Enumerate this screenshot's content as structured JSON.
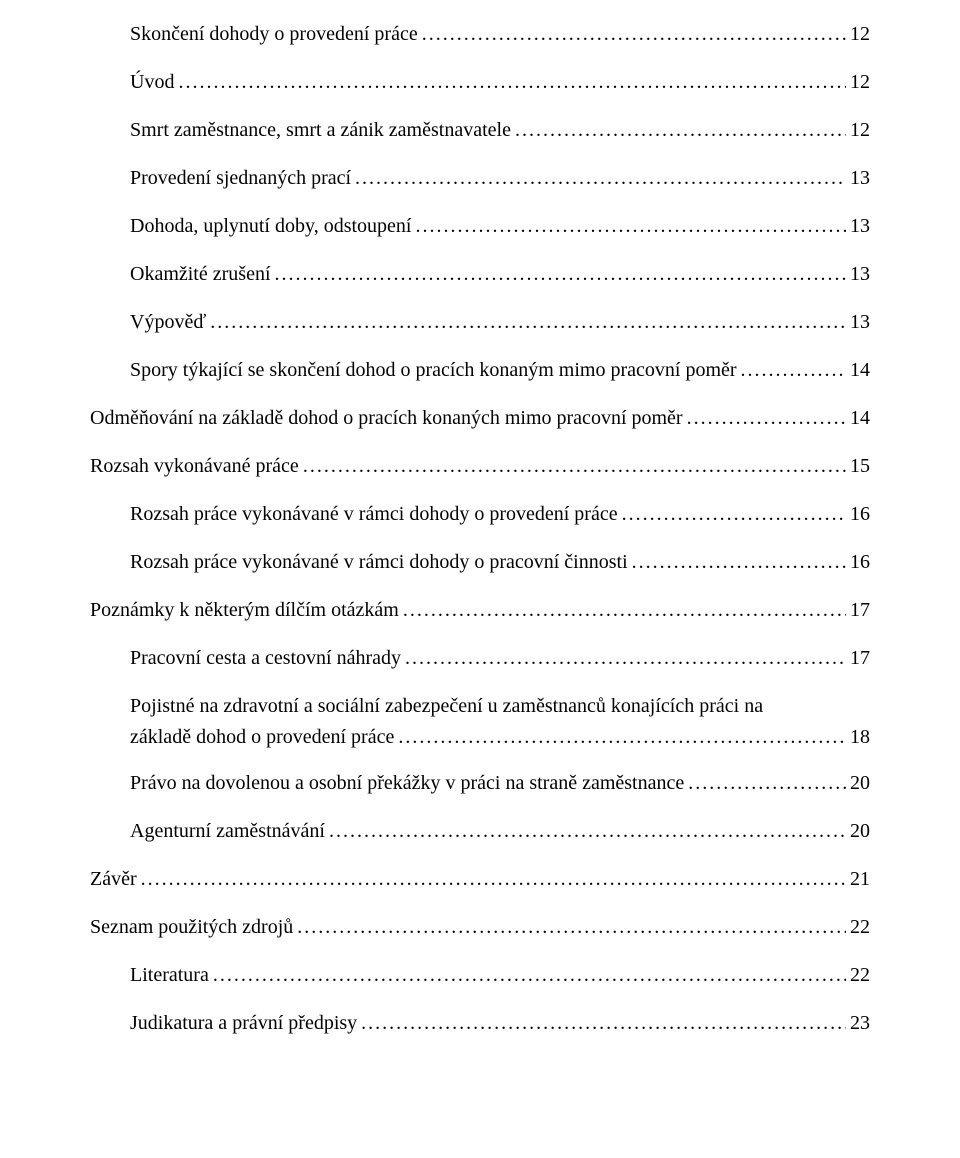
{
  "toc": [
    {
      "label": "Skončení dohody o provedení práce",
      "page": "12",
      "indent": 1
    },
    {
      "label": "Úvod",
      "page": "12",
      "indent": 1
    },
    {
      "label": "Smrt zaměstnance, smrt a zánik zaměstnavatele",
      "page": "12",
      "indent": 1
    },
    {
      "label": "Provedení sjednaných prací",
      "page": "13",
      "indent": 1
    },
    {
      "label": "Dohoda, uplynutí doby, odstoupení",
      "page": "13",
      "indent": 1
    },
    {
      "label": "Okamžité zrušení",
      "page": "13",
      "indent": 1
    },
    {
      "label": "Výpověď",
      "page": "13",
      "indent": 1
    },
    {
      "label": "Spory týkající se skončení dohod o pracích konaným mimo pracovní poměr",
      "page": "14",
      "indent": 1
    },
    {
      "label": "Odměňování na základě dohod o pracích konaných mimo pracovní poměr",
      "page": "14",
      "indent": 0
    },
    {
      "label": "Rozsah vykonávané práce",
      "page": "15",
      "indent": 0
    },
    {
      "label": "Rozsah práce vykonávané v rámci dohody o provedení práce",
      "page": "16",
      "indent": 1
    },
    {
      "label": "Rozsah práce vykonávané v rámci dohody o pracovní činnosti",
      "page": "16",
      "indent": 1
    },
    {
      "label": "Poznámky k některým dílčím otázkám",
      "page": "17",
      "indent": 0
    },
    {
      "label": "Pracovní cesta a cestovní náhrady",
      "page": "17",
      "indent": 1
    },
    {
      "label": "Pojistné na zdravotní a sociální zabezpečení u zaměstnanců konajících práci na",
      "label2": "základě dohod o provedení práce",
      "page": "18",
      "indent": 1,
      "multiline": true
    },
    {
      "label": "Právo na dovolenou a osobní překážky v práci na straně zaměstnance",
      "page": "20",
      "indent": 1
    },
    {
      "label": "Agenturní zaměstnávání",
      "page": "20",
      "indent": 1
    },
    {
      "label": "Závěr",
      "page": "21",
      "indent": 0
    },
    {
      "label": "Seznam použitých zdrojů",
      "page": "22",
      "indent": 0
    },
    {
      "label": "Literatura",
      "page": "22",
      "indent": 1
    },
    {
      "label": "Judikatura a právní předpisy",
      "page": "23",
      "indent": 1
    }
  ],
  "colors": {
    "text": "#000000",
    "background": "#ffffff"
  },
  "font": {
    "family": "Times New Roman",
    "size_pt": 15
  }
}
